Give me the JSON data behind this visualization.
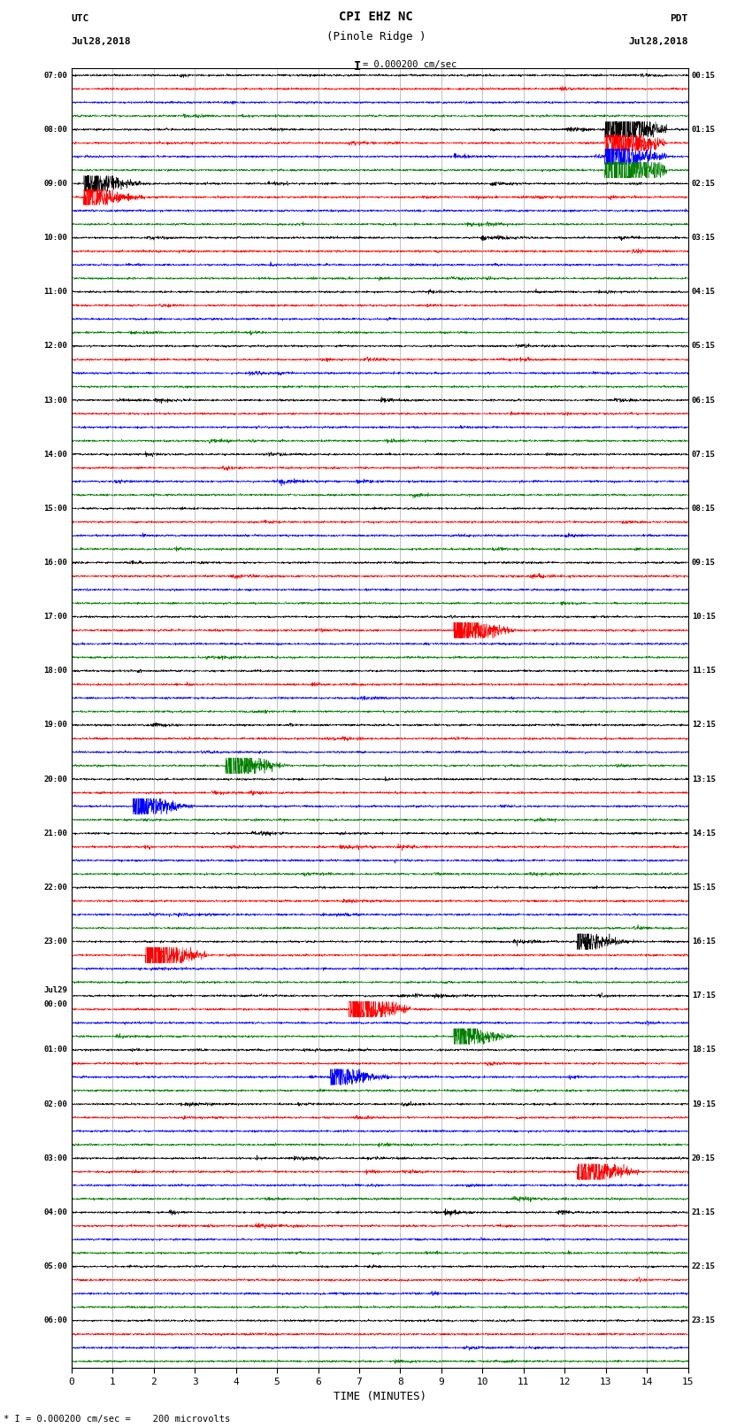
{
  "title_line1": "CPI EHZ NC",
  "title_line2": "(Pinole Ridge )",
  "scale_text": "= 0.000200 cm/sec",
  "scale_bar": "I",
  "utc_label": "UTC",
  "utc_date": "Jul28,2018",
  "pdt_label": "PDT",
  "pdt_date": "Jul28,2018",
  "bottom_note": "* I = 0.000200 cm/sec =    200 microvolts",
  "xlabel": "TIME (MINUTES)",
  "left_times": [
    "07:00",
    "08:00",
    "09:00",
    "10:00",
    "11:00",
    "12:00",
    "13:00",
    "14:00",
    "15:00",
    "16:00",
    "17:00",
    "18:00",
    "19:00",
    "20:00",
    "21:00",
    "22:00",
    "23:00",
    "Jul29\n00:00",
    "01:00",
    "02:00",
    "03:00",
    "04:00",
    "05:00",
    "06:00"
  ],
  "right_times": [
    "00:15",
    "01:15",
    "02:15",
    "03:15",
    "04:15",
    "05:15",
    "06:15",
    "07:15",
    "08:15",
    "09:15",
    "10:15",
    "11:15",
    "12:15",
    "13:15",
    "14:15",
    "15:15",
    "16:15",
    "17:15",
    "18:15",
    "19:15",
    "20:15",
    "21:15",
    "22:15",
    "23:15"
  ],
  "colors": [
    "black",
    "red",
    "blue",
    "green"
  ],
  "n_rows": 24,
  "n_traces_per_row": 4,
  "minutes": 15,
  "background_color": "white",
  "fig_width": 8.5,
  "fig_height": 16.13,
  "dpi": 100,
  "grid_color": "#aaaaaa",
  "trace_amplitude": 0.32,
  "samples_per_minute": 200
}
